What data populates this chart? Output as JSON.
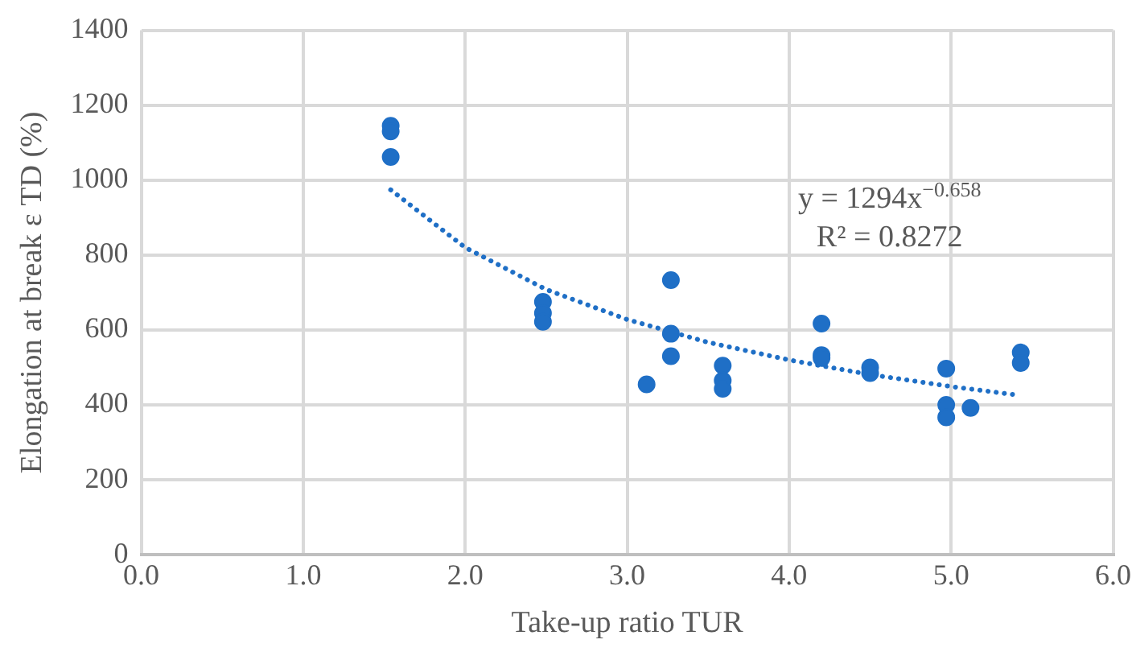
{
  "chart_data": {
    "type": "scatter",
    "xlabel": "Take-up ratio TUR",
    "ylabel": "Elongation at break ε TD (%)",
    "xlim": [
      0,
      6
    ],
    "xticks": [
      {
        "value": 0,
        "label": "0.0"
      },
      {
        "value": 1,
        "label": "1.0"
      },
      {
        "value": 2,
        "label": "2.0"
      },
      {
        "value": 3,
        "label": "3.0"
      },
      {
        "value": 4,
        "label": "4.0"
      },
      {
        "value": 5,
        "label": "5.0"
      },
      {
        "value": 6,
        "label": "6.0"
      }
    ],
    "ylim": [
      0,
      1400
    ],
    "yticks": [
      0,
      200,
      400,
      600,
      800,
      1000,
      1200,
      1400
    ],
    "grid": true,
    "legend": false,
    "marker": "circle",
    "series": [
      {
        "color": "#1f6fc6",
        "x": [
          1.54,
          1.54,
          1.54,
          2.48,
          2.48,
          2.48,
          3.12,
          3.27,
          3.27,
          3.27,
          3.59,
          3.59,
          3.59,
          4.2,
          4.2,
          4.2,
          4.5,
          4.5,
          4.97,
          4.97,
          4.97,
          5.12,
          5.43,
          5.43
        ],
        "values": [
          1145,
          1130,
          1062,
          675,
          645,
          622,
          455,
          733,
          590,
          530,
          505,
          465,
          443,
          617,
          533,
          525,
          500,
          485,
          497,
          400,
          367,
          392,
          540,
          512
        ]
      },
      {
        "type": "line",
        "color": "#1f6fc6",
        "marker": "none",
        "line_style": "dotted",
        "x": [
          1.54,
          2,
          2.5,
          3,
          3.5,
          4,
          4.5,
          5,
          5.38
        ],
        "values": [
          974,
          820,
          708,
          628,
          567,
          520,
          481,
          449,
          428
        ]
      }
    ],
    "annotations": [
      "y = 1294x$^{−0.658}$",
      "R² = 0.8272"
    ]
  }
}
